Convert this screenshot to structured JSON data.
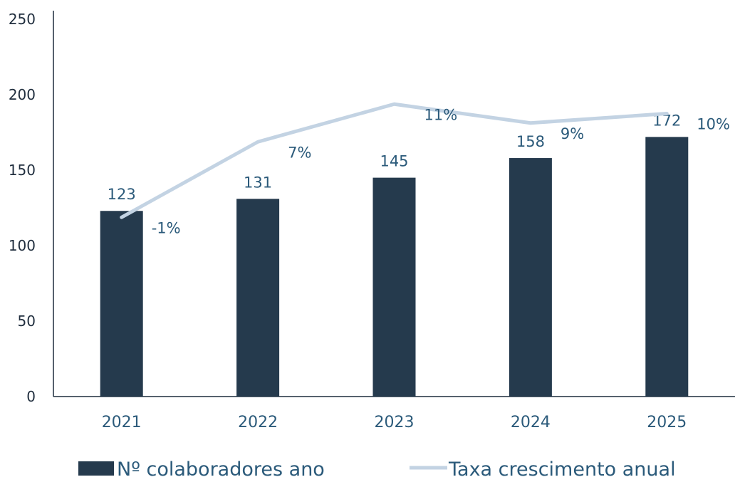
{
  "chart_data": {
    "type": "bar",
    "categories": [
      "2021",
      "2022",
      "2023",
      "2024",
      "2025"
    ],
    "ylim": [
      0,
      250
    ],
    "yticks": [
      0,
      50,
      100,
      150,
      200,
      250
    ],
    "series": [
      {
        "name": "Nº colaboradores ano",
        "type": "bar",
        "values": [
          123,
          131,
          145,
          158,
          172
        ],
        "labels": [
          "123",
          "131",
          "145",
          "158",
          "172"
        ],
        "color": "#253a4d"
      },
      {
        "name": "Taxa crescimento anual",
        "type": "line",
        "values": [
          -1,
          7,
          11,
          9,
          10
        ],
        "unit": "%",
        "labels": [
          "-1%",
          "7%",
          "11%",
          "9%",
          "10%"
        ],
        "color": "#c3d3e3"
      }
    ],
    "legend_position": "bottom",
    "grid": false
  }
}
